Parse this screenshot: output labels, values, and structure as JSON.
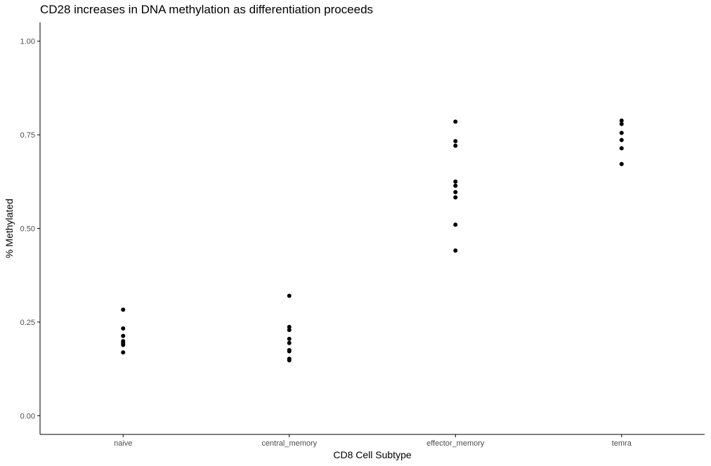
{
  "chart_data": {
    "type": "scatter",
    "title": "CD28 increases in DNA methylation as differentiation proceeds",
    "xlabel": "CD8 Cell Subtype",
    "ylabel": "% Methylated",
    "categories": [
      "naive",
      "central_memory",
      "effector_memory",
      "temra"
    ],
    "ylim": [
      -0.05,
      1.05
    ],
    "yticks": [
      0.0,
      0.25,
      0.5,
      0.75,
      1.0
    ],
    "ytick_labels": [
      "0.00",
      "0.25",
      "0.50",
      "0.75",
      "1.00"
    ],
    "grid": false,
    "points": [
      {
        "category": "naive",
        "y": 0.283
      },
      {
        "category": "naive",
        "y": 0.233
      },
      {
        "category": "naive",
        "y": 0.213
      },
      {
        "category": "naive",
        "y": 0.199
      },
      {
        "category": "naive",
        "y": 0.194
      },
      {
        "category": "naive",
        "y": 0.189
      },
      {
        "category": "naive",
        "y": 0.169
      },
      {
        "category": "central_memory",
        "y": 0.32
      },
      {
        "category": "central_memory",
        "y": 0.237
      },
      {
        "category": "central_memory",
        "y": 0.229
      },
      {
        "category": "central_memory",
        "y": 0.205
      },
      {
        "category": "central_memory",
        "y": 0.194
      },
      {
        "category": "central_memory",
        "y": 0.175
      },
      {
        "category": "central_memory",
        "y": 0.172
      },
      {
        "category": "central_memory",
        "y": 0.152
      },
      {
        "category": "central_memory",
        "y": 0.148
      },
      {
        "category": "effector_memory",
        "y": 0.785
      },
      {
        "category": "effector_memory",
        "y": 0.733
      },
      {
        "category": "effector_memory",
        "y": 0.721
      },
      {
        "category": "effector_memory",
        "y": 0.625
      },
      {
        "category": "effector_memory",
        "y": 0.614
      },
      {
        "category": "effector_memory",
        "y": 0.597
      },
      {
        "category": "effector_memory",
        "y": 0.583
      },
      {
        "category": "effector_memory",
        "y": 0.51
      },
      {
        "category": "effector_memory",
        "y": 0.441
      },
      {
        "category": "temra",
        "y": 0.788
      },
      {
        "category": "temra",
        "y": 0.779
      },
      {
        "category": "temra",
        "y": 0.755
      },
      {
        "category": "temra",
        "y": 0.736
      },
      {
        "category": "temra",
        "y": 0.714
      },
      {
        "category": "temra",
        "y": 0.672
      }
    ]
  },
  "colors": {
    "points": "#000000",
    "axis": "#000000",
    "tick_text": "#4d4d4d"
  }
}
